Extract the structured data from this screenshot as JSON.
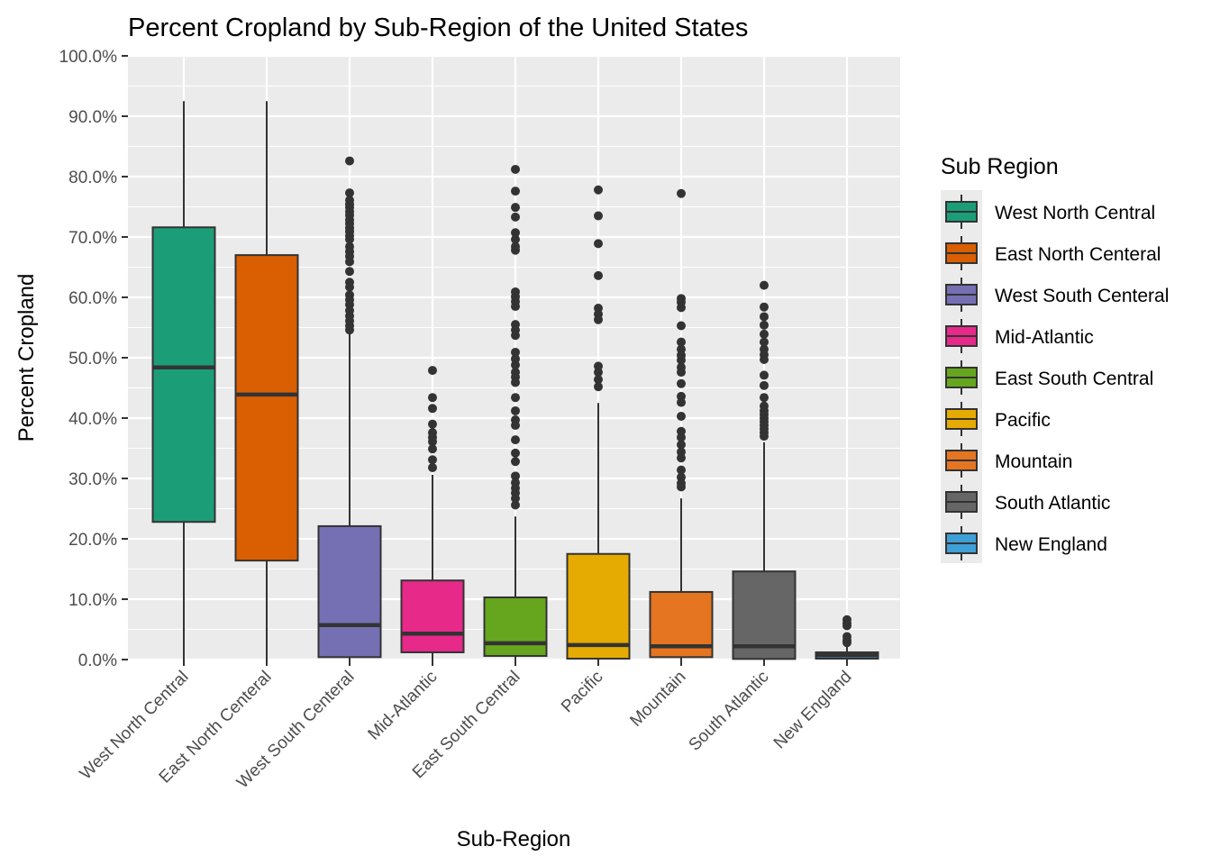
{
  "chart_data": {
    "type": "boxplot",
    "title": "Percent Cropland by Sub-Region of the United States",
    "xlabel": "Sub-Region",
    "ylabel": "Percent Cropland",
    "ylim": [
      0,
      100
    ],
    "yticks": [
      0,
      10,
      20,
      30,
      40,
      50,
      60,
      70,
      80,
      90,
      100
    ],
    "ytick_labels": [
      "0.0%",
      "10.0%",
      "20.0%",
      "30.0%",
      "40.0%",
      "50.0%",
      "60.0%",
      "70.0%",
      "80.0%",
      "90.0%",
      "100.0%"
    ],
    "grid": true,
    "legend": {
      "title": "Sub Region",
      "position": "right"
    },
    "categories": [
      "West North Central",
      "East North Centeral",
      "West South Centeral",
      "Mid-Atlantic",
      "East South Central",
      "Pacific",
      "Mountain",
      "South Atlantic",
      "New England"
    ],
    "series": [
      {
        "name": "West North Central",
        "color": "#1b9e77",
        "whisker_low": 0.0,
        "q1": 22.8,
        "median": 48.4,
        "q3": 71.6,
        "whisker_high": 92.5,
        "outliers": []
      },
      {
        "name": "East North Centeral",
        "color": "#d95f02",
        "whisker_low": 0.0,
        "q1": 16.4,
        "median": 43.9,
        "q3": 67.0,
        "whisker_high": 92.5,
        "outliers": []
      },
      {
        "name": "West South Centeral",
        "color": "#7570b3",
        "whisker_low": 0.0,
        "q1": 0.4,
        "median": 5.7,
        "q3": 22.1,
        "whisker_high": 54.2,
        "outliers": [
          82.6,
          77.3,
          76.1,
          75.4,
          74.9,
          74.2,
          73.6,
          72.8,
          72.2,
          71.5,
          70.9,
          70.2,
          69.6,
          68.4,
          67.6,
          66.8,
          65.9,
          64.3,
          62.5,
          61.7,
          60.4,
          59.6,
          58.8,
          57.8,
          56.9,
          56.1,
          55.3,
          54.6
        ]
      },
      {
        "name": "Mid-Atlantic",
        "color": "#e7298a",
        "whisker_low": 0.0,
        "q1": 1.2,
        "median": 4.3,
        "q3": 13.1,
        "whisker_high": 30.6,
        "outliers": [
          47.9,
          43.4,
          41.6,
          39.0,
          37.6,
          36.8,
          36.1,
          34.9,
          33.1,
          31.8
        ]
      },
      {
        "name": "East South Central",
        "color": "#66a61e",
        "whisker_low": 0.0,
        "q1": 0.6,
        "median": 2.7,
        "q3": 10.3,
        "whisker_high": 23.7,
        "outliers": [
          81.2,
          77.6,
          74.9,
          73.3,
          70.7,
          69.6,
          68.4,
          67.8,
          60.9,
          60.1,
          59.3,
          58.5,
          55.5,
          54.6,
          53.7,
          50.9,
          49.8,
          48.8,
          47.6,
          46.8,
          45.9,
          43.4,
          41.2,
          39.7,
          38.8,
          36.4,
          34.2,
          32.8,
          30.4,
          29.3,
          28.4,
          27.6,
          26.7,
          25.6
        ]
      },
      {
        "name": "Pacific",
        "color": "#e6ab02",
        "whisker_low": 0.0,
        "q1": 0.15,
        "median": 2.4,
        "q3": 17.5,
        "whisker_high": 42.5,
        "outliers": [
          77.8,
          73.5,
          68.9,
          63.6,
          58.2,
          57.2,
          56.3,
          48.6,
          47.6,
          46.4,
          45.2
        ]
      },
      {
        "name": "Mountain",
        "color": "#e57521",
        "whisker_low": 0.0,
        "q1": 0.4,
        "median": 2.2,
        "q3": 11.2,
        "whisker_high": 26.7,
        "outliers": [
          77.2,
          59.8,
          59.2,
          58.3,
          55.3,
          52.6,
          51.4,
          50.4,
          49.6,
          48.4,
          47.6,
          45.7,
          43.6,
          42.6,
          40.3,
          37.8,
          36.8,
          35.6,
          34.4,
          33.4,
          31.4,
          30.2,
          29.2,
          28.6
        ]
      },
      {
        "name": "South Atlantic",
        "color": "#666666",
        "whisker_low": 0.0,
        "q1": 0.1,
        "median": 2.2,
        "q3": 14.6,
        "whisker_high": 36.0,
        "outliers": [
          62.0,
          58.4,
          56.8,
          55.4,
          53.9,
          52.6,
          51.4,
          50.5,
          49.7,
          47.1,
          45.4,
          43.4,
          42.0,
          41.2,
          40.6,
          40.0,
          39.4,
          38.8,
          38.2,
          37.6,
          37.0
        ]
      },
      {
        "name": "New England",
        "color": "#3f9fd7",
        "whisker_low": 0.0,
        "q1": 0.15,
        "median": 0.7,
        "q3": 1.2,
        "whisker_high": 2.2,
        "outliers": [
          6.6,
          6.0,
          5.6,
          3.8,
          3.2,
          2.8
        ]
      }
    ]
  }
}
